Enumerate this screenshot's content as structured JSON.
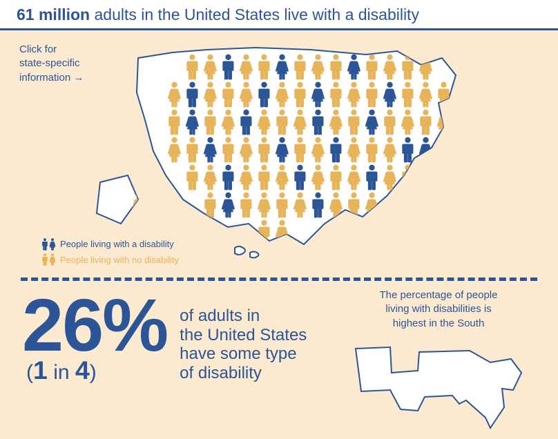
{
  "colors": {
    "primary_blue": "#2b5597",
    "accent_orange": "#e7b45a",
    "panel_bg": "#fbe9d0",
    "header_rule": "#2b5597",
    "white": "#ffffff"
  },
  "header": {
    "bold": "61 million",
    "rest": " adults in the United States live with a disability",
    "fontsize": 23
  },
  "state_link": {
    "line1": "Click for",
    "line2": "state-specific",
    "line3": "information",
    "arrow": "→"
  },
  "legend": {
    "with": "People living with a disability",
    "without": "People living with no disability"
  },
  "map": {
    "rows": 7,
    "cols": 20,
    "figures": [
      {
        "r": 0,
        "c": 3,
        "t": "m",
        "d": 0
      },
      {
        "r": 0,
        "c": 4,
        "t": "f",
        "d": 0
      },
      {
        "r": 0,
        "c": 5,
        "t": "m",
        "d": 1
      },
      {
        "r": 0,
        "c": 6,
        "t": "f",
        "d": 0
      },
      {
        "r": 0,
        "c": 7,
        "t": "m",
        "d": 0
      },
      {
        "r": 0,
        "c": 8,
        "t": "f",
        "d": 1
      },
      {
        "r": 0,
        "c": 9,
        "t": "m",
        "d": 0
      },
      {
        "r": 0,
        "c": 10,
        "t": "f",
        "d": 0
      },
      {
        "r": 0,
        "c": 11,
        "t": "m",
        "d": 0
      },
      {
        "r": 0,
        "c": 12,
        "t": "f",
        "d": 1
      },
      {
        "r": 0,
        "c": 13,
        "t": "m",
        "d": 0
      },
      {
        "r": 0,
        "c": 14,
        "t": "f",
        "d": 0
      },
      {
        "r": 0,
        "c": 15,
        "t": "m",
        "d": 0
      },
      {
        "r": 0,
        "c": 16,
        "t": "f",
        "d": 0
      },
      {
        "r": 1,
        "c": 2,
        "t": "f",
        "d": 0
      },
      {
        "r": 1,
        "c": 3,
        "t": "m",
        "d": 1
      },
      {
        "r": 1,
        "c": 4,
        "t": "f",
        "d": 0
      },
      {
        "r": 1,
        "c": 5,
        "t": "m",
        "d": 0
      },
      {
        "r": 1,
        "c": 6,
        "t": "f",
        "d": 0
      },
      {
        "r": 1,
        "c": 7,
        "t": "m",
        "d": 1
      },
      {
        "r": 1,
        "c": 8,
        "t": "f",
        "d": 0
      },
      {
        "r": 1,
        "c": 9,
        "t": "m",
        "d": 0
      },
      {
        "r": 1,
        "c": 10,
        "t": "f",
        "d": 1
      },
      {
        "r": 1,
        "c": 11,
        "t": "m",
        "d": 0
      },
      {
        "r": 1,
        "c": 12,
        "t": "f",
        "d": 0
      },
      {
        "r": 1,
        "c": 13,
        "t": "m",
        "d": 0
      },
      {
        "r": 1,
        "c": 14,
        "t": "f",
        "d": 1
      },
      {
        "r": 1,
        "c": 15,
        "t": "m",
        "d": 0
      },
      {
        "r": 1,
        "c": 16,
        "t": "f",
        "d": 0
      },
      {
        "r": 1,
        "c": 17,
        "t": "m",
        "d": 0
      },
      {
        "r": 1,
        "c": 18,
        "t": "f",
        "d": 0
      },
      {
        "r": 2,
        "c": 2,
        "t": "m",
        "d": 0
      },
      {
        "r": 2,
        "c": 3,
        "t": "f",
        "d": 1
      },
      {
        "r": 2,
        "c": 4,
        "t": "m",
        "d": 0
      },
      {
        "r": 2,
        "c": 5,
        "t": "f",
        "d": 0
      },
      {
        "r": 2,
        "c": 6,
        "t": "m",
        "d": 1
      },
      {
        "r": 2,
        "c": 7,
        "t": "f",
        "d": 0
      },
      {
        "r": 2,
        "c": 8,
        "t": "m",
        "d": 0
      },
      {
        "r": 2,
        "c": 9,
        "t": "f",
        "d": 0
      },
      {
        "r": 2,
        "c": 10,
        "t": "m",
        "d": 1
      },
      {
        "r": 2,
        "c": 11,
        "t": "f",
        "d": 0
      },
      {
        "r": 2,
        "c": 12,
        "t": "m",
        "d": 0
      },
      {
        "r": 2,
        "c": 13,
        "t": "f",
        "d": 1
      },
      {
        "r": 2,
        "c": 14,
        "t": "m",
        "d": 0
      },
      {
        "r": 2,
        "c": 15,
        "t": "f",
        "d": 0
      },
      {
        "r": 2,
        "c": 16,
        "t": "m",
        "d": 0
      },
      {
        "r": 2,
        "c": 17,
        "t": "f",
        "d": 0
      },
      {
        "r": 3,
        "c": 2,
        "t": "f",
        "d": 0
      },
      {
        "r": 3,
        "c": 3,
        "t": "m",
        "d": 0
      },
      {
        "r": 3,
        "c": 4,
        "t": "f",
        "d": 1
      },
      {
        "r": 3,
        "c": 5,
        "t": "m",
        "d": 0
      },
      {
        "r": 3,
        "c": 6,
        "t": "f",
        "d": 0
      },
      {
        "r": 3,
        "c": 7,
        "t": "m",
        "d": 0
      },
      {
        "r": 3,
        "c": 8,
        "t": "f",
        "d": 1
      },
      {
        "r": 3,
        "c": 9,
        "t": "m",
        "d": 0
      },
      {
        "r": 3,
        "c": 10,
        "t": "f",
        "d": 0
      },
      {
        "r": 3,
        "c": 11,
        "t": "m",
        "d": 1
      },
      {
        "r": 3,
        "c": 12,
        "t": "f",
        "d": 0
      },
      {
        "r": 3,
        "c": 13,
        "t": "m",
        "d": 0
      },
      {
        "r": 3,
        "c": 14,
        "t": "f",
        "d": 0
      },
      {
        "r": 3,
        "c": 15,
        "t": "m",
        "d": 1
      },
      {
        "r": 3,
        "c": 16,
        "t": "f",
        "d": 1
      },
      {
        "r": 3,
        "c": 17,
        "t": "m",
        "d": 0
      },
      {
        "r": 4,
        "c": 3,
        "t": "m",
        "d": 0
      },
      {
        "r": 4,
        "c": 4,
        "t": "f",
        "d": 0
      },
      {
        "r": 4,
        "c": 5,
        "t": "m",
        "d": 1
      },
      {
        "r": 4,
        "c": 6,
        "t": "f",
        "d": 0
      },
      {
        "r": 4,
        "c": 7,
        "t": "m",
        "d": 0
      },
      {
        "r": 4,
        "c": 8,
        "t": "f",
        "d": 0
      },
      {
        "r": 4,
        "c": 9,
        "t": "m",
        "d": 1
      },
      {
        "r": 4,
        "c": 10,
        "t": "f",
        "d": 0
      },
      {
        "r": 4,
        "c": 11,
        "t": "m",
        "d": 0
      },
      {
        "r": 4,
        "c": 12,
        "t": "f",
        "d": 0
      },
      {
        "r": 4,
        "c": 13,
        "t": "m",
        "d": 1
      },
      {
        "r": 4,
        "c": 14,
        "t": "f",
        "d": 0
      },
      {
        "r": 4,
        "c": 15,
        "t": "m",
        "d": 0
      },
      {
        "r": 5,
        "c": 0,
        "t": "f",
        "d": 0
      },
      {
        "r": 5,
        "c": 4,
        "t": "m",
        "d": 0
      },
      {
        "r": 5,
        "c": 5,
        "t": "f",
        "d": 1
      },
      {
        "r": 5,
        "c": 6,
        "t": "m",
        "d": 0
      },
      {
        "r": 5,
        "c": 7,
        "t": "f",
        "d": 0
      },
      {
        "r": 5,
        "c": 8,
        "t": "m",
        "d": 0
      },
      {
        "r": 5,
        "c": 9,
        "t": "f",
        "d": 0
      },
      {
        "r": 5,
        "c": 10,
        "t": "m",
        "d": 1
      },
      {
        "r": 5,
        "c": 11,
        "t": "f",
        "d": 0
      },
      {
        "r": 5,
        "c": 12,
        "t": "m",
        "d": 0
      },
      {
        "r": 5,
        "c": 13,
        "t": "f",
        "d": 0
      },
      {
        "r": 6,
        "c": 0,
        "t": "m",
        "d": 1
      },
      {
        "r": 6,
        "c": 1,
        "t": "f",
        "d": 0
      },
      {
        "r": 6,
        "c": 7,
        "t": "m",
        "d": 0
      },
      {
        "r": 6,
        "c": 8,
        "t": "f",
        "d": 0
      }
    ]
  },
  "stat": {
    "percent": "26%",
    "percent_fontsize": 108,
    "ratio_prefix": "(",
    "ratio_a": "1",
    "ratio_mid": " in ",
    "ratio_b": "4",
    "ratio_suffix": ")",
    "ratio_fontsize": 30,
    "desc_line1": "of adults in",
    "desc_line2": "the United States",
    "desc_line3": "have some type",
    "desc_line4": "of disability",
    "desc_fontsize": 24
  },
  "south": {
    "line1": "The percentage of people",
    "line2": "living with disabilities is",
    "line3": "highest in the South"
  }
}
